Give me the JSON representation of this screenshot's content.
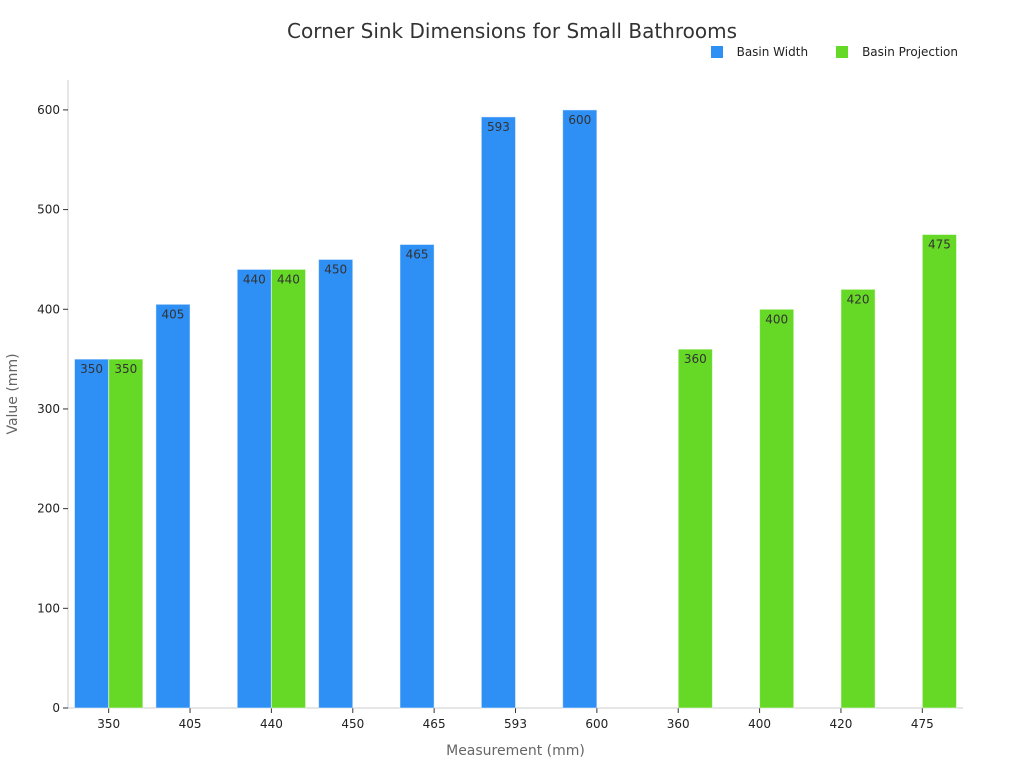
{
  "chart_data": {
    "type": "bar",
    "title": "Corner Sink Dimensions for Small Bathrooms",
    "xlabel": "Measurement (mm)",
    "ylabel": "Value (mm)",
    "ylim": [
      0,
      630
    ],
    "yticks": [
      0,
      100,
      200,
      300,
      400,
      500,
      600
    ],
    "categories": [
      "350",
      "405",
      "440",
      "450",
      "465",
      "593",
      "600",
      "360",
      "400",
      "420",
      "475"
    ],
    "series": [
      {
        "name": "Basin Width",
        "color": "#2e8ff5",
        "values": [
          350,
          405,
          440,
          450,
          465,
          593,
          600,
          null,
          null,
          null,
          null
        ]
      },
      {
        "name": "Basin Projection",
        "color": "#66d926",
        "values": [
          350,
          null,
          440,
          null,
          null,
          null,
          null,
          360,
          400,
          420,
          475
        ]
      }
    ],
    "grid": false,
    "legend": "top-right",
    "data_labels": true
  }
}
